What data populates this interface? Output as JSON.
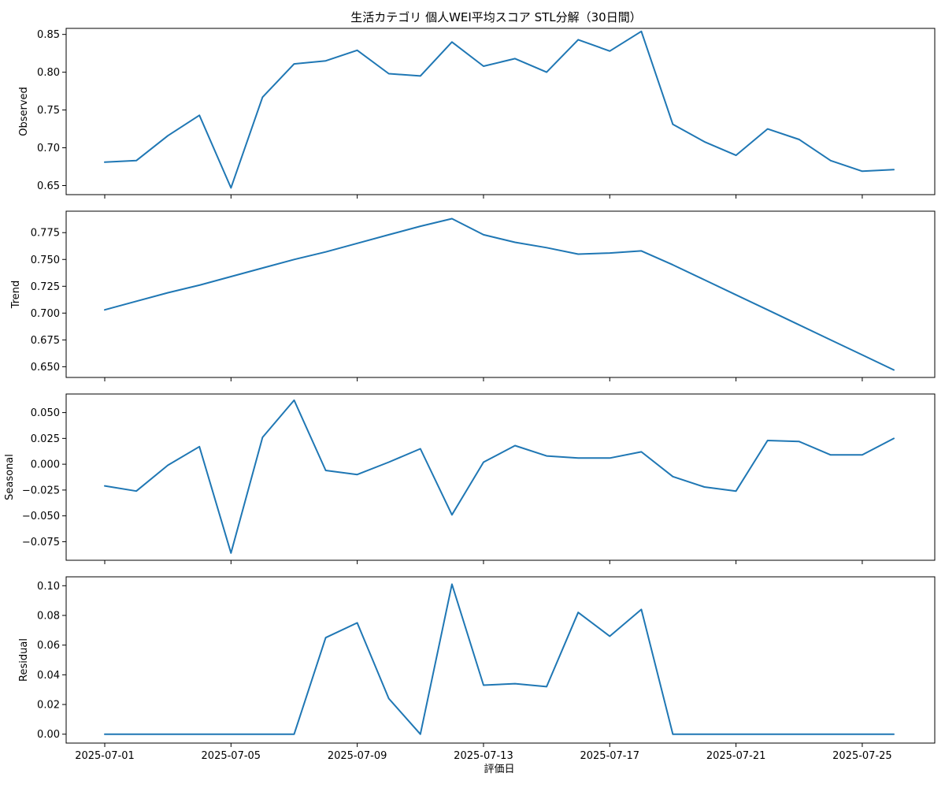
{
  "chart_data": {
    "type": "line",
    "title": "生活カテゴリ 個人WEI平均スコア STL分解（30日間）",
    "xlabel": "評価日",
    "line_color": "#1f77b4",
    "x": [
      "2025-07-01",
      "2025-07-02",
      "2025-07-03",
      "2025-07-04",
      "2025-07-05",
      "2025-07-06",
      "2025-07-07",
      "2025-07-08",
      "2025-07-09",
      "2025-07-10",
      "2025-07-11",
      "2025-07-12",
      "2025-07-13",
      "2025-07-14",
      "2025-07-15",
      "2025-07-16",
      "2025-07-17",
      "2025-07-18",
      "2025-07-19",
      "2025-07-20",
      "2025-07-21",
      "2025-07-22",
      "2025-07-23",
      "2025-07-24",
      "2025-07-25",
      "2025-07-26"
    ],
    "x_ticks": [
      "2025-07-01",
      "2025-07-05",
      "2025-07-09",
      "2025-07-13",
      "2025-07-17",
      "2025-07-21",
      "2025-07-25"
    ],
    "panels": [
      {
        "ylabel": "Observed",
        "ylim": [
          0.638,
          0.858
        ],
        "yticks": [
          "0.65",
          "0.70",
          "0.75",
          "0.80",
          "0.85"
        ],
        "values": [
          0.681,
          0.683,
          0.716,
          0.743,
          0.647,
          0.767,
          0.811,
          0.815,
          0.829,
          0.798,
          0.795,
          0.84,
          0.808,
          0.818,
          0.8,
          0.843,
          0.828,
          0.854,
          0.731,
          0.708,
          0.69,
          0.725,
          0.711,
          0.683,
          0.669,
          0.671
        ]
      },
      {
        "ylabel": "Trend",
        "ylim": [
          0.64,
          0.795
        ],
        "yticks": [
          "0.650",
          "0.675",
          "0.700",
          "0.725",
          "0.750",
          "0.775"
        ],
        "values": [
          0.703,
          0.711,
          0.719,
          0.726,
          0.734,
          0.742,
          0.75,
          0.757,
          0.765,
          0.773,
          0.781,
          0.788,
          0.773,
          0.766,
          0.761,
          0.755,
          0.756,
          0.758,
          0.745,
          0.731,
          0.717,
          0.703,
          0.689,
          0.675,
          0.661,
          0.647
        ]
      },
      {
        "ylabel": "Seasonal",
        "ylim": [
          -0.093,
          0.068
        ],
        "yticks": [
          "−0.075",
          "−0.050",
          "−0.025",
          "0.000",
          "0.025",
          "0.050"
        ],
        "values": [
          -0.021,
          -0.026,
          -0.001,
          0.017,
          -0.086,
          0.026,
          0.062,
          -0.006,
          -0.01,
          0.002,
          0.015,
          -0.049,
          0.002,
          0.018,
          0.008,
          0.006,
          0.006,
          0.012,
          -0.012,
          -0.022,
          -0.026,
          0.023,
          0.022,
          0.009,
          0.009,
          0.025
        ]
      },
      {
        "ylabel": "Residual",
        "ylim": [
          -0.006,
          0.106
        ],
        "yticks": [
          "0.00",
          "0.02",
          "0.04",
          "0.06",
          "0.08",
          "0.10"
        ],
        "values": [
          0,
          0,
          0,
          0,
          0,
          0,
          0,
          0.065,
          0.075,
          0.024,
          0,
          0.101,
          0.033,
          0.034,
          0.032,
          0.082,
          0.066,
          0.084,
          0,
          0,
          0,
          0,
          0,
          0,
          0,
          0
        ]
      }
    ]
  }
}
